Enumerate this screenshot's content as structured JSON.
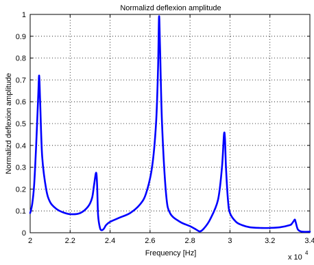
{
  "chart_data": {
    "type": "line",
    "title": "Normalizd deflexion amplitude",
    "xlabel": "Frequency [Hz]",
    "ylabel": "Normalizd deflexion amplitude",
    "x_multiplier_label": "x 10",
    "x_multiplier_exponent": "4",
    "xlim": [
      2.0,
      3.4
    ],
    "ylim": [
      0,
      1
    ],
    "x_ticks": [
      "2",
      "2.2",
      "2.4",
      "2.6",
      "2.8",
      "3",
      "3.2",
      "3.4"
    ],
    "y_ticks": [
      "0",
      "0.1",
      "0.2",
      "0.3",
      "0.4",
      "0.5",
      "0.6",
      "0.7",
      "0.8",
      "0.9",
      "1"
    ],
    "grid": true,
    "line_color": "#0000ff",
    "series": [
      {
        "x": [
          2.0,
          2.01,
          2.02,
          2.03,
          2.04,
          2.045,
          2.05,
          2.06,
          2.08,
          2.1,
          2.13,
          2.16,
          2.2,
          2.25,
          2.29,
          2.31,
          2.32,
          2.33,
          2.335,
          2.34,
          2.35,
          2.36,
          2.37,
          2.38,
          2.4,
          2.45,
          2.5,
          2.55,
          2.58,
          2.61,
          2.63,
          2.64,
          2.645,
          2.65,
          2.66,
          2.68,
          2.7,
          2.75,
          2.8,
          2.83,
          2.85,
          2.87,
          2.9,
          2.94,
          2.96,
          2.97,
          2.975,
          2.98,
          2.99,
          3.0,
          3.03,
          3.06,
          3.1,
          3.15,
          3.2,
          3.25,
          3.3,
          3.31,
          3.32,
          3.325,
          3.33,
          3.34,
          3.36,
          3.4
        ],
        "y": [
          0.09,
          0.13,
          0.22,
          0.4,
          0.62,
          0.72,
          0.6,
          0.35,
          0.2,
          0.14,
          0.11,
          0.095,
          0.085,
          0.09,
          0.12,
          0.16,
          0.22,
          0.275,
          0.22,
          0.08,
          0.02,
          0.012,
          0.02,
          0.035,
          0.05,
          0.07,
          0.09,
          0.13,
          0.18,
          0.3,
          0.5,
          0.75,
          0.99,
          0.85,
          0.5,
          0.18,
          0.09,
          0.05,
          0.03,
          0.015,
          0.006,
          0.02,
          0.06,
          0.15,
          0.3,
          0.45,
          0.43,
          0.3,
          0.15,
          0.09,
          0.05,
          0.035,
          0.025,
          0.022,
          0.022,
          0.025,
          0.035,
          0.042,
          0.055,
          0.06,
          0.045,
          0.015,
          0.005,
          0.005
        ]
      }
    ]
  }
}
